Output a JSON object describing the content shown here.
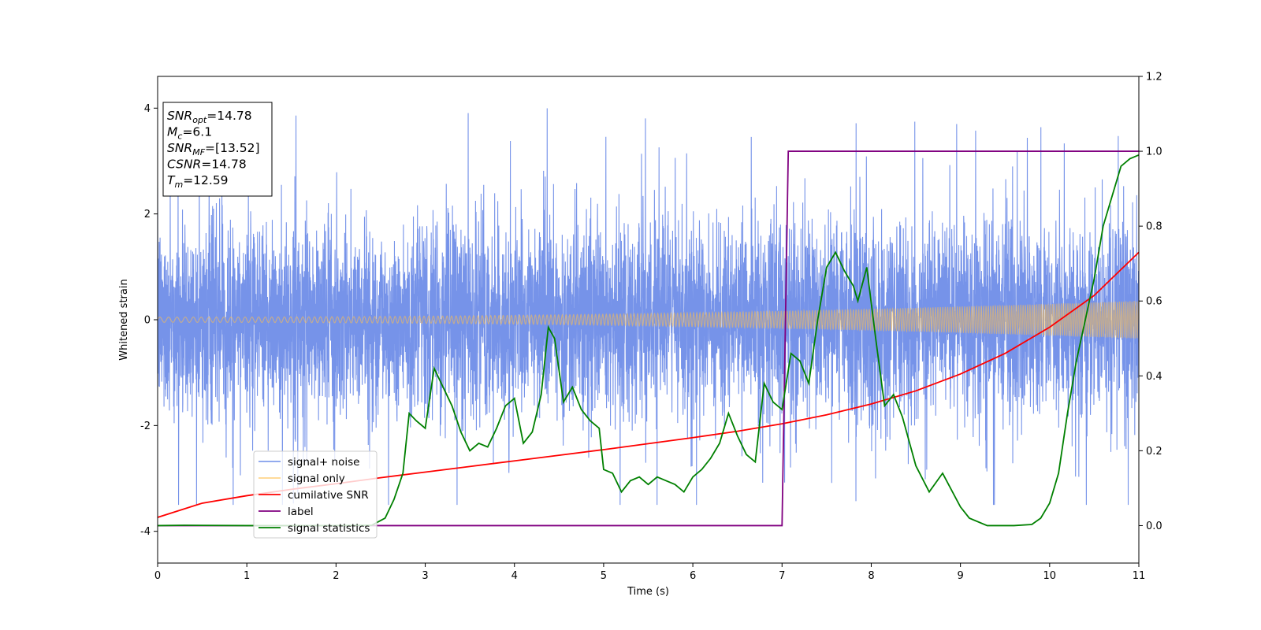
{
  "chart_data": {
    "type": "line",
    "xlabel": "Time (s)",
    "ylabel": "Whitened strain",
    "xlim": [
      0,
      11
    ],
    "ylim_left": [
      -4.6,
      4.6
    ],
    "ylim_right": [
      -0.1,
      1.2
    ],
    "x_ticks": [
      0,
      1,
      2,
      3,
      4,
      5,
      6,
      7,
      8,
      9,
      10,
      11
    ],
    "y_ticks_left": [
      -4,
      -2,
      0,
      2,
      4
    ],
    "y_ticks_right": [
      "0.0",
      "0.2",
      "0.4",
      "0.6",
      "0.8",
      "1.0",
      "1.2"
    ],
    "grid": false,
    "legend_position": "lower-left",
    "legend": [
      {
        "label": "signal+ noise",
        "color": "#4169e1"
      },
      {
        "label": "signal only",
        "color": "#ffc04d"
      },
      {
        "label": "cumilative SNR",
        "color": "#ff0000"
      },
      {
        "label": "label",
        "color": "#800080"
      },
      {
        "label": "signal statistics",
        "color": "#008000"
      }
    ],
    "annotation": [
      {
        "var": "SNR",
        "sub": "opt",
        "value": "=14.78"
      },
      {
        "var": "M",
        "sub": "c",
        "value": "=6.1"
      },
      {
        "var": "SNR",
        "sub": "MF",
        "value": "=[13.52]"
      },
      {
        "var": "CSNR",
        "sub": "",
        "value": "=14.78"
      },
      {
        "var": "T",
        "sub": "m",
        "value": "=12.59"
      }
    ],
    "series": [
      {
        "name": "signal+ noise",
        "axis": "left",
        "color": "#4169e1",
        "description_range": [
          -3.5,
          4.2
        ]
      },
      {
        "name": "signal only",
        "axis": "left",
        "color": "#ffc04d",
        "amplitude_start": 0.05,
        "amplitude_end": 0.36
      },
      {
        "name": "cumilative SNR",
        "axis": "right",
        "color": "#ff0000",
        "x": [
          0,
          0.5,
          1,
          1.5,
          2,
          2.5,
          3,
          3.5,
          4,
          4.5,
          5,
          5.5,
          6,
          6.5,
          7,
          7.5,
          8,
          8.5,
          9,
          9.5,
          10,
          10.5,
          11
        ],
        "y": [
          0.022,
          0.06,
          0.08,
          0.097,
          0.112,
          0.128,
          0.143,
          0.158,
          0.173,
          0.188,
          0.203,
          0.219,
          0.235,
          0.252,
          0.272,
          0.296,
          0.325,
          0.36,
          0.405,
          0.46,
          0.53,
          0.615,
          0.73
        ]
      },
      {
        "name": "label",
        "axis": "right",
        "color": "#800080",
        "x": [
          0,
          7.0,
          7.07,
          11
        ],
        "y": [
          0,
          0,
          1,
          1
        ]
      },
      {
        "name": "signal statistics",
        "axis": "right",
        "color": "#008000",
        "x": [
          0,
          0.3,
          1,
          2,
          2.4,
          2.55,
          2.65,
          2.75,
          2.82,
          2.9,
          3.0,
          3.1,
          3.2,
          3.3,
          3.4,
          3.5,
          3.6,
          3.7,
          3.8,
          3.9,
          4.0,
          4.1,
          4.2,
          4.3,
          4.38,
          4.45,
          4.55,
          4.65,
          4.75,
          4.85,
          4.95,
          5.0,
          5.1,
          5.2,
          5.3,
          5.4,
          5.5,
          5.6,
          5.7,
          5.8,
          5.9,
          6.0,
          6.1,
          6.2,
          6.3,
          6.4,
          6.5,
          6.6,
          6.7,
          6.8,
          6.9,
          7.0,
          7.1,
          7.2,
          7.3,
          7.4,
          7.5,
          7.6,
          7.7,
          7.8,
          7.85,
          7.95,
          8.05,
          8.15,
          8.25,
          8.35,
          8.5,
          8.65,
          8.8,
          9.0,
          9.1,
          9.3,
          9.6,
          9.8,
          9.9,
          10.0,
          10.1,
          10.2,
          10.3,
          10.4,
          10.5,
          10.6,
          10.7,
          10.8,
          10.9,
          11.0
        ],
        "y": [
          0.0,
          0.001,
          0.0,
          0.0,
          0.001,
          0.02,
          0.07,
          0.14,
          0.3,
          0.28,
          0.26,
          0.42,
          0.37,
          0.32,
          0.25,
          0.2,
          0.22,
          0.21,
          0.26,
          0.32,
          0.34,
          0.22,
          0.25,
          0.35,
          0.53,
          0.5,
          0.33,
          0.37,
          0.31,
          0.28,
          0.26,
          0.15,
          0.14,
          0.09,
          0.12,
          0.13,
          0.11,
          0.13,
          0.12,
          0.11,
          0.09,
          0.13,
          0.15,
          0.18,
          0.22,
          0.3,
          0.24,
          0.19,
          0.17,
          0.38,
          0.33,
          0.31,
          0.46,
          0.44,
          0.38,
          0.55,
          0.69,
          0.73,
          0.68,
          0.64,
          0.6,
          0.69,
          0.5,
          0.32,
          0.35,
          0.29,
          0.16,
          0.09,
          0.14,
          0.05,
          0.02,
          0.0,
          0.0,
          0.003,
          0.02,
          0.06,
          0.14,
          0.3,
          0.44,
          0.55,
          0.66,
          0.8,
          0.88,
          0.96,
          0.98,
          0.99
        ]
      }
    ]
  }
}
